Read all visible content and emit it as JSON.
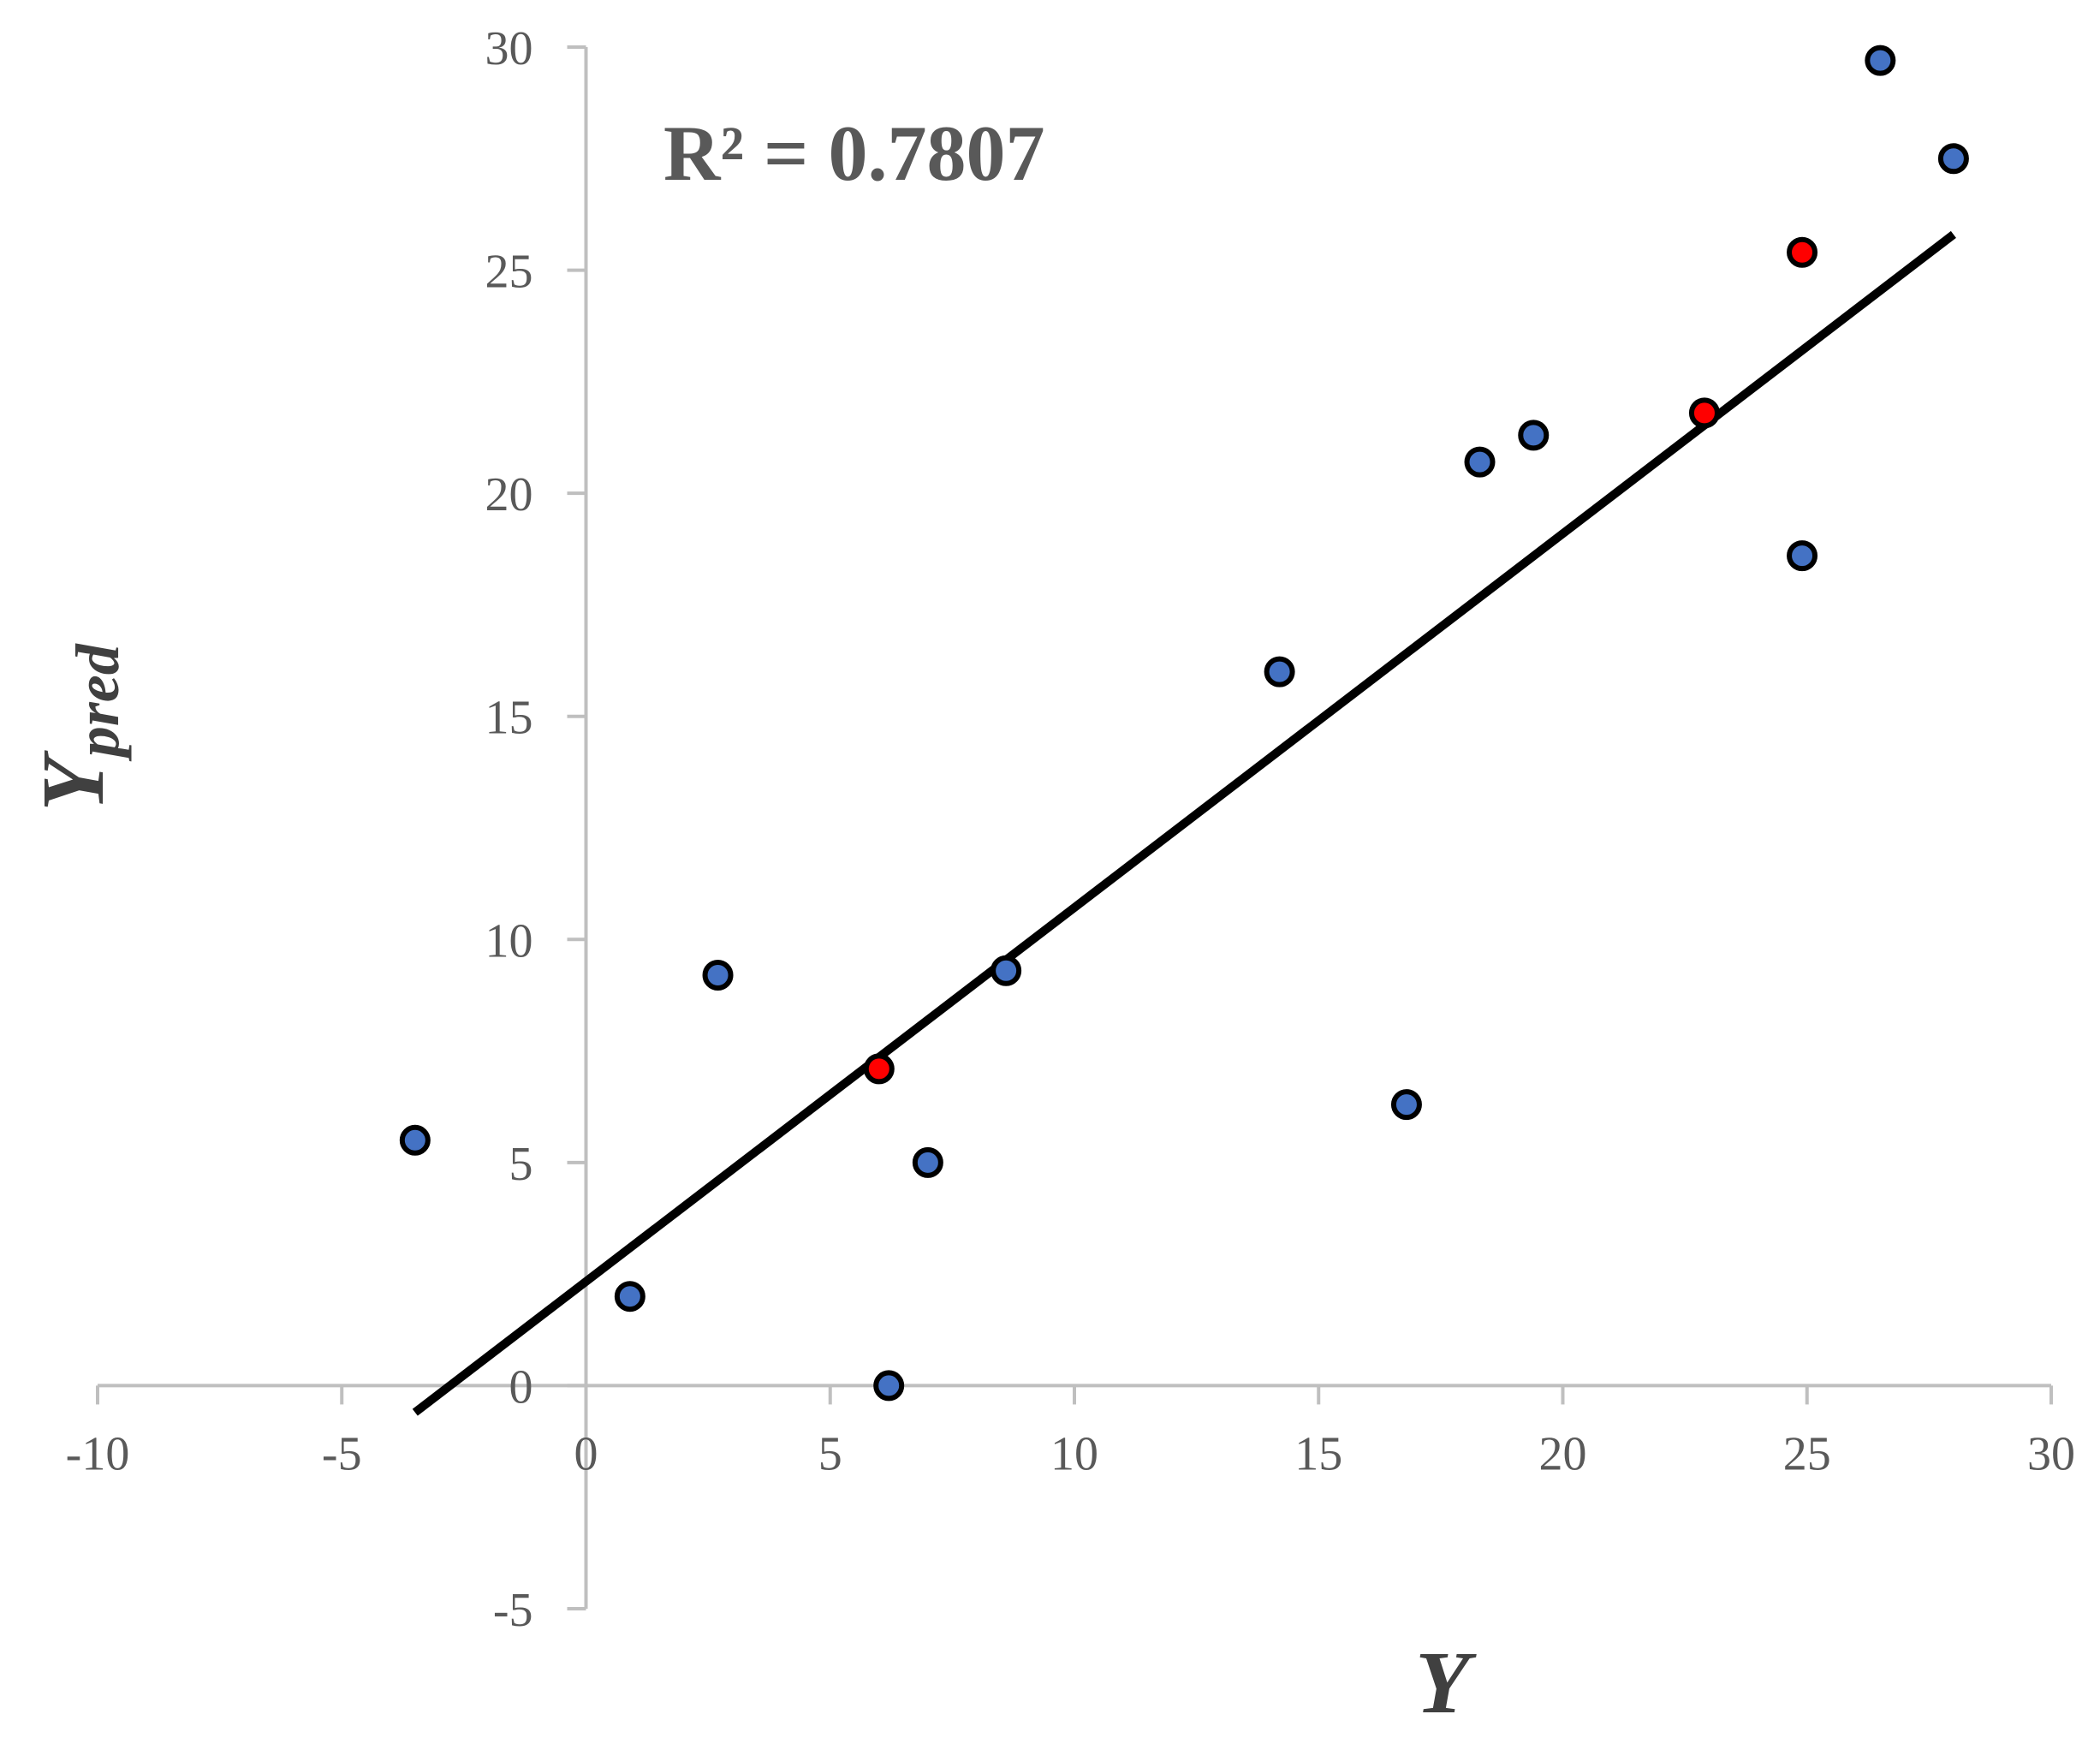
{
  "chart_data": {
    "type": "scatter",
    "title": "",
    "xlabel": "Y",
    "ylabel_main": "Y",
    "ylabel_sub": "pred",
    "xlim": [
      -10,
      30
    ],
    "ylim": [
      -5,
      30
    ],
    "x_ticks": [
      -10,
      -5,
      0,
      5,
      10,
      15,
      20,
      25,
      30
    ],
    "y_ticks": [
      -5,
      0,
      5,
      10,
      15,
      20,
      25,
      30
    ],
    "x_tick_labels": [
      "-10",
      "-5",
      "0",
      "5",
      "10",
      "15",
      "20",
      "25",
      "30"
    ],
    "y_tick_labels": [
      "-5",
      "0",
      "5",
      "10",
      "15",
      "20",
      "25",
      "30"
    ],
    "grid": false,
    "annotation": "R² = 0.7807",
    "colors": {
      "series_1": "#4472C4",
      "series_2": "#FF0000",
      "trendline": "#000000",
      "axis": "#BFBFBF",
      "marker_edge": "#000000"
    },
    "series": [
      {
        "color": "#4472C4",
        "points": [
          {
            "x": -3.5,
            "y": 5.5
          },
          {
            "x": 0.9,
            "y": 2.0
          },
          {
            "x": 2.7,
            "y": 9.2
          },
          {
            "x": 6.2,
            "y": 0.0
          },
          {
            "x": 7.0,
            "y": 5.0
          },
          {
            "x": 8.6,
            "y": 9.3
          },
          {
            "x": 14.2,
            "y": 16.0
          },
          {
            "x": 16.8,
            "y": 6.3
          },
          {
            "x": 18.3,
            "y": 20.7
          },
          {
            "x": 19.4,
            "y": 21.3
          },
          {
            "x": 24.9,
            "y": 18.6
          },
          {
            "x": 26.5,
            "y": 29.7
          },
          {
            "x": 28.0,
            "y": 27.5
          }
        ]
      },
      {
        "color": "#FF0000",
        "points": [
          {
            "x": 6.0,
            "y": 7.1
          },
          {
            "x": 22.9,
            "y": 21.8
          },
          {
            "x": 24.9,
            "y": 25.4
          }
        ]
      }
    ],
    "trendline": {
      "x_start": -3.5,
      "y_start": -0.6,
      "x_end": 28.0,
      "y_end": 25.8
    }
  }
}
